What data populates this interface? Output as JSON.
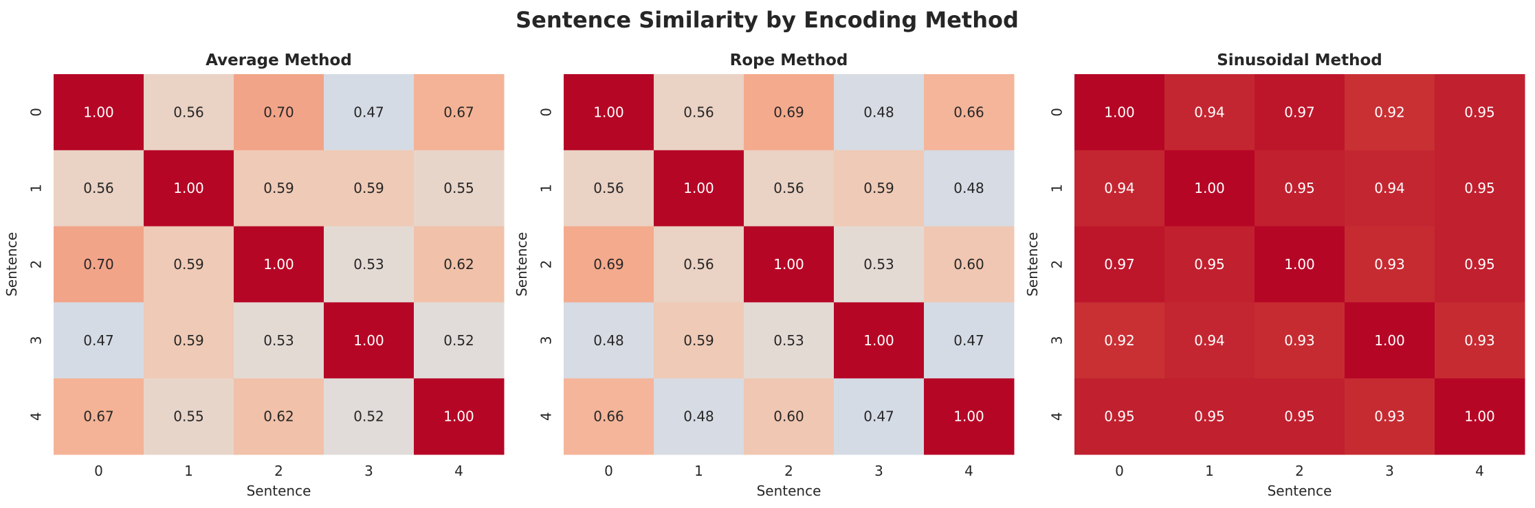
{
  "title": "Sentence Similarity by Encoding Method",
  "chart_data": [
    {
      "type": "heatmap",
      "title": "Average Method",
      "xlabel": "Sentence",
      "ylabel": "Sentence",
      "x_ticks": [
        "0",
        "1",
        "2",
        "3",
        "4"
      ],
      "y_ticks": [
        "0",
        "1",
        "2",
        "3",
        "4"
      ],
      "colormap": "coolwarm",
      "values": [
        [
          1.0,
          0.56,
          0.7,
          0.47,
          0.67
        ],
        [
          0.56,
          1.0,
          0.59,
          0.59,
          0.55
        ],
        [
          0.7,
          0.59,
          1.0,
          0.53,
          0.62
        ],
        [
          0.47,
          0.59,
          0.53,
          1.0,
          0.52
        ],
        [
          0.67,
          0.55,
          0.62,
          0.52,
          1.0
        ]
      ]
    },
    {
      "type": "heatmap",
      "title": "Rope Method",
      "xlabel": "Sentence",
      "ylabel": "Sentence",
      "x_ticks": [
        "0",
        "1",
        "2",
        "3",
        "4"
      ],
      "y_ticks": [
        "0",
        "1",
        "2",
        "3",
        "4"
      ],
      "colormap": "coolwarm",
      "values": [
        [
          1.0,
          0.56,
          0.69,
          0.48,
          0.66
        ],
        [
          0.56,
          1.0,
          0.56,
          0.59,
          0.48
        ],
        [
          0.69,
          0.56,
          1.0,
          0.53,
          0.6
        ],
        [
          0.48,
          0.59,
          0.53,
          1.0,
          0.47
        ],
        [
          0.66,
          0.48,
          0.6,
          0.47,
          1.0
        ]
      ]
    },
    {
      "type": "heatmap",
      "title": "Sinusoidal Method",
      "xlabel": "Sentence",
      "ylabel": "Sentence",
      "x_ticks": [
        "0",
        "1",
        "2",
        "3",
        "4"
      ],
      "y_ticks": [
        "0",
        "1",
        "2",
        "3",
        "4"
      ],
      "colormap": "coolwarm",
      "values": [
        [
          1.0,
          0.94,
          0.97,
          0.92,
          0.95
        ],
        [
          0.94,
          1.0,
          0.95,
          0.94,
          0.95
        ],
        [
          0.97,
          0.95,
          1.0,
          0.93,
          0.95
        ],
        [
          0.92,
          0.94,
          0.93,
          1.0,
          0.93
        ],
        [
          0.95,
          0.95,
          0.95,
          0.93,
          1.0
        ]
      ]
    }
  ]
}
